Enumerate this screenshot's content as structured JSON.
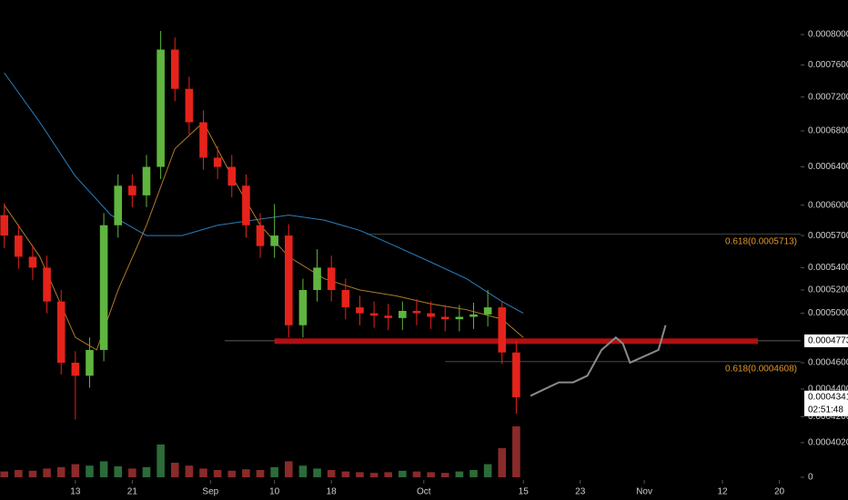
{
  "chart_data": {
    "type": "candlestick",
    "x": [
      -10,
      -8,
      -6,
      -4,
      -2,
      0,
      2,
      4,
      6,
      8,
      10,
      12,
      14,
      16,
      18,
      20,
      22,
      24,
      26,
      28,
      30,
      32,
      34,
      36,
      38,
      40,
      42,
      44,
      46,
      48,
      50,
      52,
      54,
      56,
      58,
      60,
      62
    ],
    "open": [
      0.00059,
      0.00057,
      0.00055,
      0.00054,
      0.00051,
      0.00046,
      0.00045,
      0.00047,
      0.00058,
      0.00062,
      0.00061,
      0.00064,
      0.00078,
      0.00073,
      0.00069,
      0.00065,
      0.00064,
      0.00062,
      0.00058,
      0.00056,
      0.00057,
      0.00049,
      0.00052,
      0.00054,
      0.00052,
      0.000505,
      0.0005,
      0.000498,
      0.000496,
      0.000502,
      0.0005,
      0.000497,
      0.000495,
      0.000497,
      0.000499,
      0.000505,
      0.000468
    ],
    "high": [
      0.000602,
      0.000581,
      0.000561,
      0.000551,
      0.00052,
      0.000469,
      0.00048,
      0.000592,
      0.000632,
      0.000632,
      0.000653,
      0.000805,
      0.000796,
      0.000745,
      0.000704,
      0.000663,
      0.000653,
      0.000632,
      0.000592,
      0.000601,
      0.000581,
      0.00053,
      0.000557,
      0.000551,
      0.00053,
      0.000515,
      0.00051,
      0.000508,
      0.00051,
      0.000512,
      0.00051,
      0.000507,
      0.000507,
      0.000509,
      0.00052,
      0.00051,
      0.000477
    ],
    "low": [
      0.000558,
      0.000539,
      0.000529,
      0.0005,
      0.000451,
      0.000418,
      0.000441,
      0.000461,
      0.000568,
      0.000598,
      0.000598,
      0.000627,
      0.000715,
      0.000676,
      0.000637,
      0.000627,
      0.000608,
      0.000568,
      0.000549,
      0.000549,
      0.00048,
      0.00048,
      0.00051,
      0.00051,
      0.000495,
      0.00049,
      0.000488,
      0.000486,
      0.000486,
      0.00049,
      0.000487,
      0.000485,
      0.000485,
      0.000487,
      0.000489,
      0.000459,
      0.000422
    ],
    "close": [
      0.00057,
      0.00055,
      0.00054,
      0.00051,
      0.00046,
      0.00045,
      0.00047,
      0.00058,
      0.00062,
      0.00061,
      0.00064,
      0.00078,
      0.00073,
      0.00069,
      0.00065,
      0.00064,
      0.00062,
      0.00058,
      0.00056,
      0.00057,
      0.00049,
      0.00052,
      0.00054,
      0.00052,
      0.000505,
      0.0005,
      0.000498,
      0.000496,
      0.000502,
      0.0005,
      0.000497,
      0.000495,
      0.000497,
      0.000499,
      0.000505,
      0.000468,
      0.000434
    ],
    "volume": [
      8,
      10,
      9,
      12,
      14,
      18,
      16,
      22,
      15,
      12,
      14,
      45,
      20,
      16,
      12,
      10,
      9,
      11,
      10,
      14,
      22,
      16,
      12,
      10,
      8,
      7,
      6,
      7,
      9,
      8,
      7,
      6,
      8,
      10,
      18,
      40,
      70
    ],
    "up_color": "#5fb53f",
    "down_color": "#e5231b",
    "volume_color": "#8a2a2a",
    "ma_lines": [
      {
        "color": "#2a7fbf",
        "x": [
          -10,
          -5,
          0,
          5,
          10,
          15,
          20,
          25,
          30,
          35,
          40,
          45,
          50,
          55,
          60,
          63
        ],
        "values": [
          0.00075,
          0.00069,
          0.00063,
          0.00059,
          0.00057,
          0.00057,
          0.00058,
          0.000585,
          0.00059,
          0.000585,
          0.000575,
          0.00056,
          0.000545,
          0.00053,
          0.00051,
          0.0005
        ]
      },
      {
        "color": "#b07a2a",
        "x": [
          -10,
          -5,
          0,
          3,
          6,
          10,
          14,
          18,
          22,
          26,
          30,
          35,
          40,
          45,
          50,
          55,
          60,
          63
        ],
        "values": [
          0.0006,
          0.00055,
          0.00048,
          0.00047,
          0.00052,
          0.00058,
          0.00066,
          0.00069,
          0.00063,
          0.00058,
          0.00055,
          0.00053,
          0.00052,
          0.000515,
          0.000508,
          0.000503,
          0.000495,
          0.00048
        ]
      }
    ],
    "pattern": {
      "color": "#8a8a8a",
      "x": [
        64,
        66,
        68,
        70,
        72,
        74,
        76,
        77,
        78,
        80,
        82,
        83
      ],
      "values": [
        0.000435,
        0.00044,
        0.000445,
        0.000445,
        0.00045,
        0.00047,
        0.00048,
        0.000475,
        0.00046,
        0.000465,
        0.00047,
        0.00049
      ]
    },
    "zone": {
      "value": 0.000477,
      "x": [
        28,
        96
      ],
      "color": "#b01010"
    },
    "levels": [
      {
        "value": 0.0005713,
        "label": "0.618(0.0005713)",
        "from": 41
      },
      {
        "value": 0.0004608,
        "label": "0.618(0.0004608)",
        "from": 52
      }
    ],
    "last_price": 0.0004773,
    "last_price_from": 21,
    "current_price": 0.0004341,
    "countdown": "02:51:48",
    "xlim": [
      -10.6,
      102
    ],
    "xticks": [
      {
        "value": 0,
        "label": "13"
      },
      {
        "value": 8,
        "label": "21"
      },
      {
        "value": 19,
        "label": "Sep"
      },
      {
        "value": 28,
        "label": "10"
      },
      {
        "value": 36,
        "label": "18"
      },
      {
        "value": 49,
        "label": "Oct"
      },
      {
        "value": 63,
        "label": "15"
      },
      {
        "value": 71,
        "label": "23"
      },
      {
        "value": 80,
        "label": "Nov"
      },
      {
        "value": 91,
        "label": "12"
      },
      {
        "value": 99,
        "label": "20"
      }
    ],
    "ylim": [
      0.000388,
      0.000848
    ],
    "log_scale": true,
    "yticks": [
      {
        "value": 0.0008,
        "label": "0.0008000"
      },
      {
        "value": 0.00076,
        "label": "0.0007600"
      },
      {
        "value": 0.00072,
        "label": "0.0007200"
      },
      {
        "value": 0.00068,
        "label": "0.0006800"
      },
      {
        "value": 0.00064,
        "label": "0.0006400"
      },
      {
        "value": 0.0006,
        "label": "0.0006000"
      },
      {
        "value": 0.00057,
        "label": "0.0005700"
      },
      {
        "value": 0.00054,
        "label": "0.0005400"
      },
      {
        "value": 0.00052,
        "label": "0.0005200"
      },
      {
        "value": 0.0005,
        "label": "0.0005000"
      },
      {
        "value": 0.00046,
        "label": "0.0004600"
      },
      {
        "value": 0.00044,
        "label": "0.0004400"
      },
      {
        "value": 0.00042,
        "label": "0.0004200"
      },
      {
        "value": 0.000402,
        "label": "0.0004020"
      }
    ],
    "y2lim": [
      0,
      100
    ],
    "y2ticks": [
      0
    ]
  }
}
